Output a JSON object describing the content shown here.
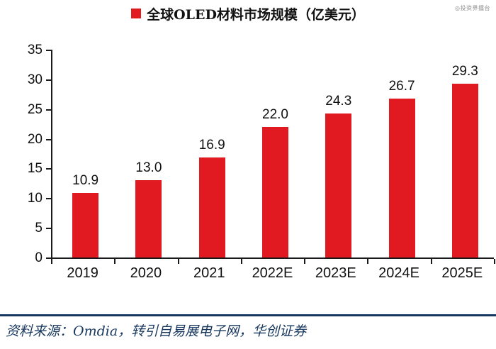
{
  "watermark": "◎投资界擂台",
  "legend": {
    "label": "全球OLED材料市场规模（亿美元）",
    "marker_color": "#e01a20"
  },
  "chart_data": {
    "type": "bar",
    "title": "全球OLED材料市场规模（亿美元）",
    "categories": [
      "2019",
      "2020",
      "2021",
      "2022E",
      "2023E",
      "2024E",
      "2025E"
    ],
    "values": [
      10.9,
      13.0,
      16.9,
      22.0,
      24.3,
      26.7,
      29.3
    ],
    "xlabel": "",
    "ylabel": "",
    "ylim": [
      0,
      35
    ],
    "yticks": [
      0,
      5,
      10,
      15,
      20,
      25,
      30,
      35
    ],
    "bar_color": "#e01a20",
    "grid": false,
    "legend_position": "top-center",
    "data_labels": true,
    "value_label_decimals": 1
  },
  "footer": {
    "source_text": "资料来源：Omdia，转引自易展电子网，华创证券",
    "divider_color": "#17375e",
    "text_color": "#17375e"
  }
}
